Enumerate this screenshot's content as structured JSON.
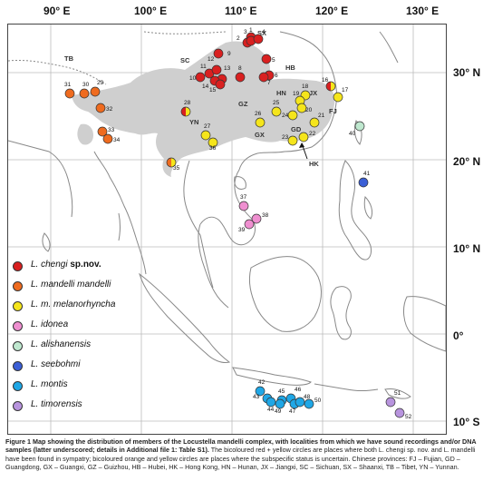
{
  "axes": {
    "lon_labels": [
      "90° E",
      "100° E",
      "110° E",
      "120° E",
      "130° E"
    ],
    "lat_labels": [
      "30° N",
      "20° N",
      "10° N",
      "0°",
      "10° S"
    ]
  },
  "legend": [
    {
      "name_italic": "L. chengi",
      "suffix": " sp.nov.",
      "color": "#d92020"
    },
    {
      "name_italic": "L. mandelli mandelli",
      "suffix": "",
      "color": "#ef6b1f"
    },
    {
      "name_italic": "L. m. melanorhyncha",
      "suffix": "",
      "color": "#f5e51b"
    },
    {
      "name_italic": "L. idonea",
      "suffix": "",
      "color": "#ef8fd0"
    },
    {
      "name_italic": "L. alishanensis",
      "suffix": "",
      "color": "#bfe8cf"
    },
    {
      "name_italic": "L. seebohmi",
      "suffix": "",
      "color": "#3b5fd6"
    },
    {
      "name_italic": "L. montis",
      "suffix": "",
      "color": "#1fa7e6"
    },
    {
      "name_italic": "L. timorensis",
      "suffix": "",
      "color": "#b894de"
    }
  ],
  "provinces": [
    "TB",
    "SC",
    "SX",
    "HB",
    "GZ",
    "HN",
    "JX",
    "FJ",
    "YN",
    "GX",
    "GD",
    "HK"
  ],
  "sites": [
    {
      "id": "1",
      "taxon": "chengi"
    },
    {
      "id": "2",
      "taxon": "chengi"
    },
    {
      "id": "3",
      "taxon": "chengi"
    },
    {
      "id": "4",
      "taxon": "chengi"
    },
    {
      "id": "5",
      "taxon": "chengi"
    },
    {
      "id": "6",
      "taxon": "chengi"
    },
    {
      "id": "7",
      "taxon": "chengi"
    },
    {
      "id": "8",
      "taxon": "chengi"
    },
    {
      "id": "9",
      "taxon": "chengi"
    },
    {
      "id": "10",
      "taxon": "chengi"
    },
    {
      "id": "11",
      "taxon": "chengi"
    },
    {
      "id": "12",
      "taxon": "chengi"
    },
    {
      "id": "13",
      "taxon": "chengi"
    },
    {
      "id": "14",
      "taxon": "chengi"
    },
    {
      "id": "15",
      "taxon": "chengi"
    },
    {
      "id": "16",
      "taxon": "chengi+melanorhyncha"
    },
    {
      "id": "17",
      "taxon": "melanorhyncha"
    },
    {
      "id": "18",
      "taxon": "melanorhyncha"
    },
    {
      "id": "19",
      "taxon": "melanorhyncha"
    },
    {
      "id": "20",
      "taxon": "melanorhyncha"
    },
    {
      "id": "21",
      "taxon": "melanorhyncha"
    },
    {
      "id": "22",
      "taxon": "melanorhyncha"
    },
    {
      "id": "23",
      "taxon": "melanorhyncha"
    },
    {
      "id": "24",
      "taxon": "melanorhyncha"
    },
    {
      "id": "25",
      "taxon": "melanorhyncha"
    },
    {
      "id": "26",
      "taxon": "melanorhyncha"
    },
    {
      "id": "27",
      "taxon": "melanorhyncha"
    },
    {
      "id": "28",
      "taxon": "chengi+melanorhyncha"
    },
    {
      "id": "29",
      "taxon": "mandelli"
    },
    {
      "id": "30",
      "taxon": "mandelli"
    },
    {
      "id": "31",
      "taxon": "mandelli"
    },
    {
      "id": "32",
      "taxon": "mandelli"
    },
    {
      "id": "33",
      "taxon": "mandelli"
    },
    {
      "id": "34",
      "taxon": "mandelli"
    },
    {
      "id": "35",
      "taxon": "mandelli+melanorhyncha"
    },
    {
      "id": "36",
      "taxon": "melanorhyncha"
    },
    {
      "id": "37",
      "taxon": "idonea"
    },
    {
      "id": "38",
      "taxon": "idonea"
    },
    {
      "id": "39",
      "taxon": "idonea"
    },
    {
      "id": "40",
      "taxon": "alishanensis"
    },
    {
      "id": "41",
      "taxon": "seebohmi"
    },
    {
      "id": "42",
      "taxon": "montis"
    },
    {
      "id": "43",
      "taxon": "montis"
    },
    {
      "id": "44",
      "taxon": "montis"
    },
    {
      "id": "45",
      "taxon": "montis"
    },
    {
      "id": "46",
      "taxon": "montis"
    },
    {
      "id": "47",
      "taxon": "montis"
    },
    {
      "id": "48",
      "taxon": "montis"
    },
    {
      "id": "49",
      "taxon": "montis"
    },
    {
      "id": "50",
      "taxon": "montis"
    },
    {
      "id": "51",
      "taxon": "timorensis"
    },
    {
      "id": "52",
      "taxon": "timorensis"
    }
  ],
  "caption": {
    "title": "Figure 1 Map showing the distribution of members of the Locustella mandelli complex, with localities from which we have sound recordings and/or DNA samples (latter underscored; details in Additional file 1: Table S1).",
    "body": " The bicoloured red + yellow circles are places where both L. chengi sp. nov. and L. mandelli have been found in sympatry; bicoloured orange and yellow circles are places where the subspecific status is uncertain. Chinese provinces: FJ – Fujian, GD – Guangdong, GX – Guangxi, GZ – Guizhou, HB – Hubei, HK – Hong Kong, HN – Hunan, JX – Jiangxi, SC – Sichuan, SX – Shaanxi, TB – Tibet, YN – Yunnan."
  }
}
